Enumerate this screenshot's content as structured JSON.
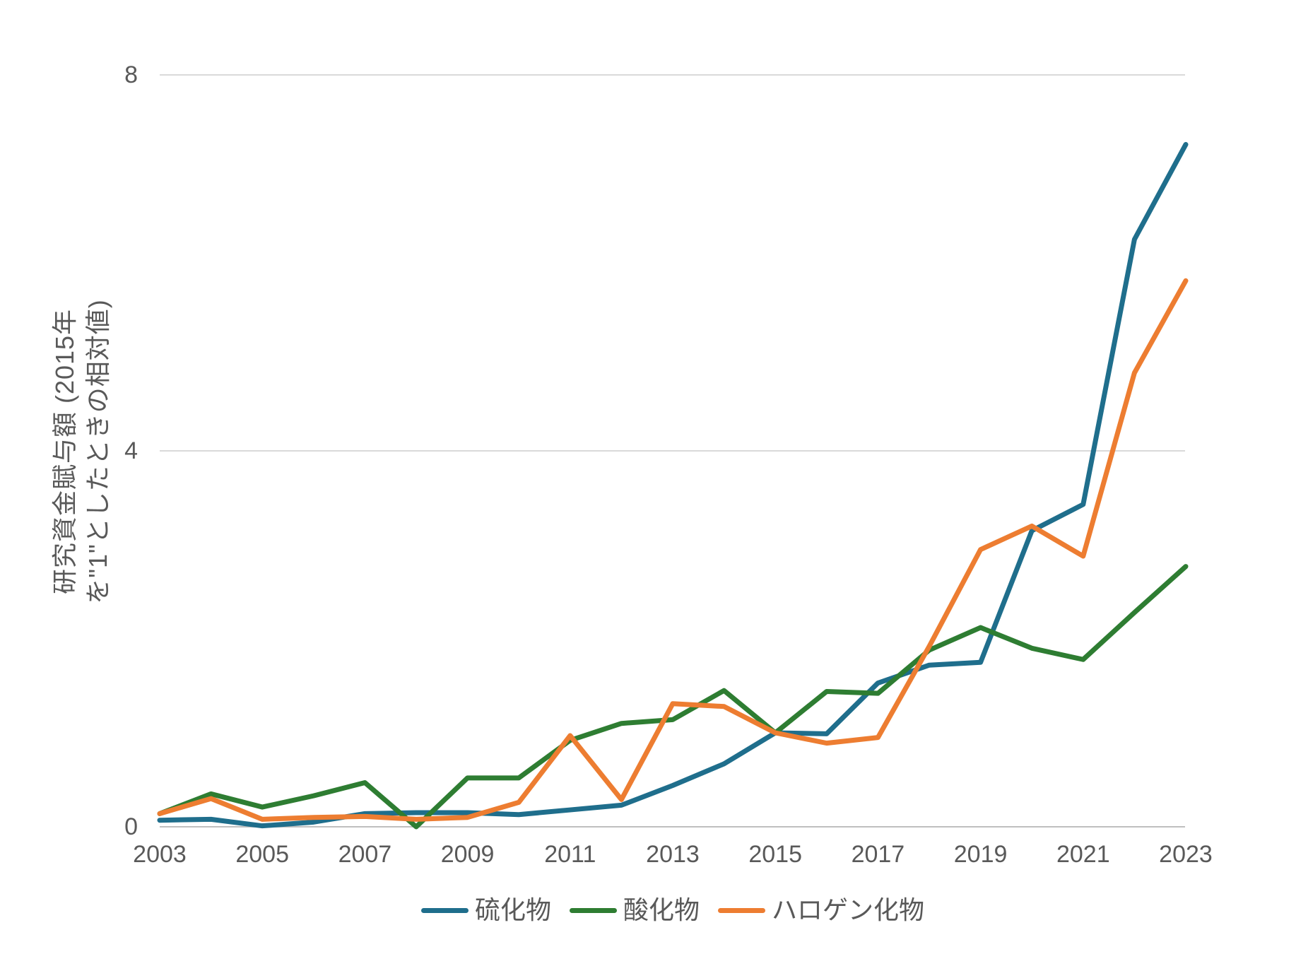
{
  "chart_data": {
    "type": "line",
    "title": "",
    "ylabel_line1": "研究資金賦与額 (2015年",
    "ylabel_line2": "を\"1\"としたときの相対値)",
    "x": [
      2003,
      2004,
      2005,
      2006,
      2007,
      2008,
      2009,
      2010,
      2011,
      2012,
      2013,
      2014,
      2015,
      2016,
      2017,
      2018,
      2019,
      2020,
      2021,
      2022,
      2023
    ],
    "series": [
      {
        "name": "硫化物",
        "color": "#1F6E8C",
        "values": [
          0.07,
          0.08,
          0.01,
          0.05,
          0.14,
          0.15,
          0.15,
          0.13,
          0.18,
          0.23,
          0.44,
          0.67,
          1.0,
          0.99,
          1.53,
          1.72,
          1.75,
          3.15,
          3.43,
          6.25,
          7.26
        ]
      },
      {
        "name": "酸化物",
        "color": "#2E7D32",
        "values": [
          0.14,
          0.35,
          0.21,
          0.33,
          0.47,
          0.0,
          0.52,
          0.52,
          0.92,
          1.1,
          1.14,
          1.45,
          1.0,
          1.44,
          1.42,
          1.88,
          2.12,
          1.9,
          1.78,
          2.28,
          2.77
        ]
      },
      {
        "name": "ハロゲン化物",
        "color": "#ED7D31",
        "values": [
          0.14,
          0.3,
          0.08,
          0.1,
          0.11,
          0.08,
          0.1,
          0.26,
          0.97,
          0.29,
          1.31,
          1.28,
          1.0,
          0.89,
          0.95,
          1.92,
          2.95,
          3.2,
          2.88,
          4.83,
          5.81
        ]
      }
    ],
    "yticks": [
      0,
      4,
      8
    ],
    "xticks": [
      2003,
      2005,
      2007,
      2009,
      2011,
      2013,
      2015,
      2017,
      2019,
      2021,
      2023
    ],
    "ylim": [
      0,
      8
    ],
    "grid": "horizontal",
    "legend_position": "bottom-center"
  },
  "colors": {
    "background": "#FFFFFF",
    "tick_text": "#595959",
    "gridline": "#D9D9D9",
    "axis_line": "#BFBFBF"
  }
}
